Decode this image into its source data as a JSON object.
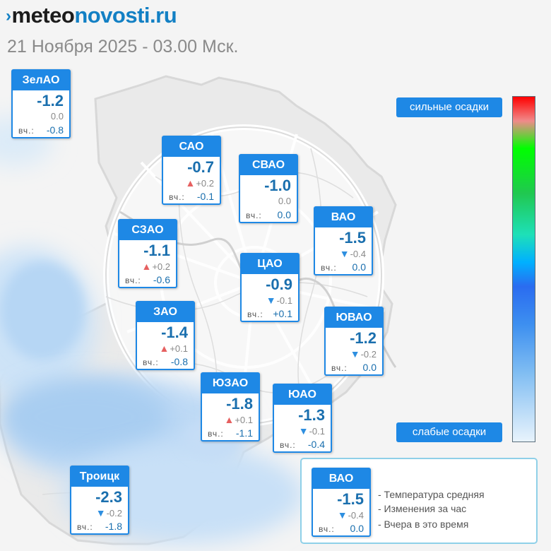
{
  "header": {
    "logo_meteo": "meteo",
    "logo_novosti": "novosti.ru",
    "subtitle": "21 Ноября 2025 - 03.00 Мск."
  },
  "yesterday_label": "вч.:",
  "districts": [
    {
      "name": "ЗелАО",
      "temp": "-1.2",
      "change": "0.0",
      "trend": "none",
      "yesterday": "-0.8"
    },
    {
      "name": "САО",
      "temp": "-0.7",
      "change": "+0.2",
      "trend": "up",
      "yesterday": "-0.1"
    },
    {
      "name": "СВАО",
      "temp": "-1.0",
      "change": "0.0",
      "trend": "none",
      "yesterday": "0.0"
    },
    {
      "name": "ВАО",
      "temp": "-1.5",
      "change": "-0.4",
      "trend": "down",
      "yesterday": "0.0"
    },
    {
      "name": "СЗАО",
      "temp": "-1.1",
      "change": "+0.2",
      "trend": "up",
      "yesterday": "-0.6"
    },
    {
      "name": "ЦАО",
      "temp": "-0.9",
      "change": "-0.1",
      "trend": "down",
      "yesterday": "+0.1"
    },
    {
      "name": "ЗАО",
      "temp": "-1.4",
      "change": "+0.1",
      "trend": "up",
      "yesterday": "-0.8"
    },
    {
      "name": "ЮВАО",
      "temp": "-1.2",
      "change": "-0.2",
      "trend": "down",
      "yesterday": "0.0"
    },
    {
      "name": "ЮЗАО",
      "temp": "-1.8",
      "change": "+0.1",
      "trend": "up",
      "yesterday": "-1.1"
    },
    {
      "name": "ЮАО",
      "temp": "-1.3",
      "change": "-0.1",
      "trend": "down",
      "yesterday": "-0.4"
    },
    {
      "name": "Троицк",
      "temp": "-2.3",
      "change": "-0.2",
      "trend": "down",
      "yesterday": "-1.8"
    }
  ],
  "precipitation": {
    "high_label": "сильные осадки",
    "low_label": "слабые осадки"
  },
  "legend": {
    "sample": {
      "name": "ВАО",
      "temp": "-1.5",
      "change": "-0.4",
      "trend": "down",
      "yesterday": "0.0"
    },
    "items": [
      "- Температура средняя",
      "- Изменения за час",
      "- Вчера в это время"
    ]
  },
  "colors": {
    "accent": "#1e88e5",
    "temp_text": "#1a6fae",
    "trend_up": "#e66060",
    "trend_down": "#2e8fe0"
  }
}
